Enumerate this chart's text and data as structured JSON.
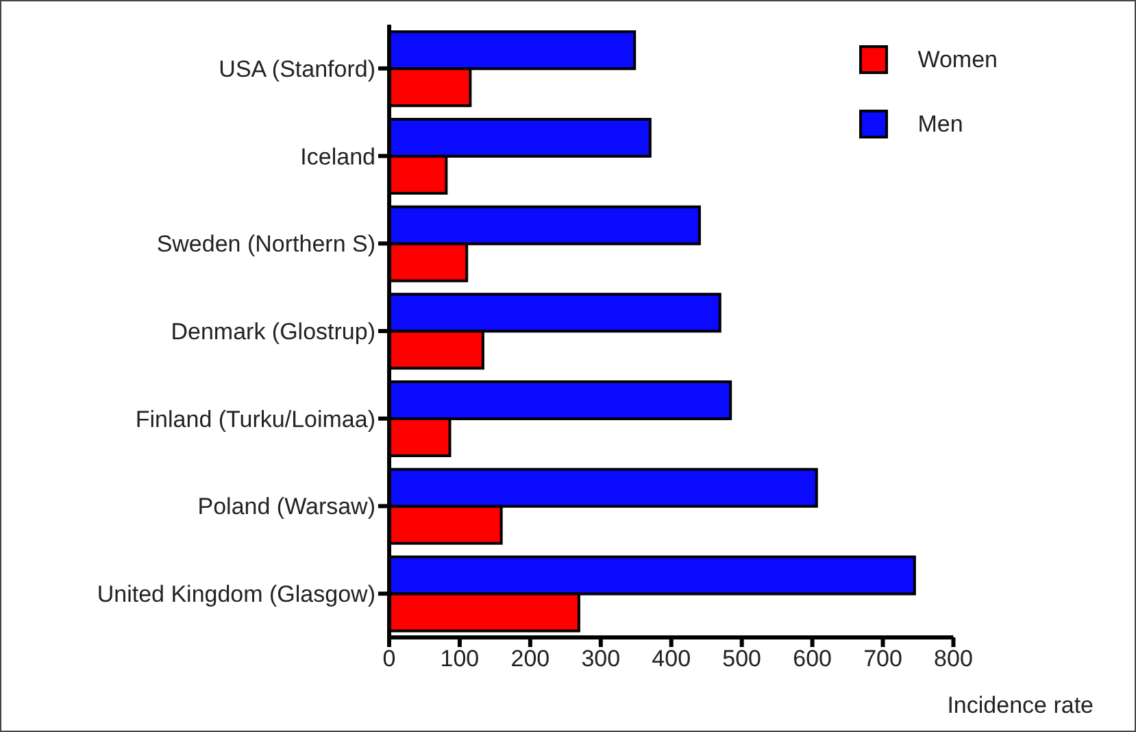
{
  "chart_data": {
    "type": "bar",
    "orientation": "horizontal",
    "xlabel": "Incidence rate",
    "categories": [
      "USA (Stanford)",
      "Iceland",
      "Sweden (Northern S)",
      "Denmark (Glostrup)",
      "Finland (Turku/Loimaa)",
      "Poland (Warsaw)",
      "United Kingdom (Glasgow)"
    ],
    "series": [
      {
        "name": "Women",
        "color": "#ff0000",
        "values": [
          115,
          81,
          110,
          133,
          86,
          159,
          269
        ]
      },
      {
        "name": "Men",
        "color": "#0a0aff",
        "values": [
          348,
          370,
          440,
          469,
          484,
          606,
          745
        ]
      }
    ],
    "xlim": [
      0,
      800
    ],
    "xticks": [
      0,
      100,
      200,
      300,
      400,
      500,
      600,
      700,
      800
    ],
    "grid": false,
    "legend": "top right"
  }
}
